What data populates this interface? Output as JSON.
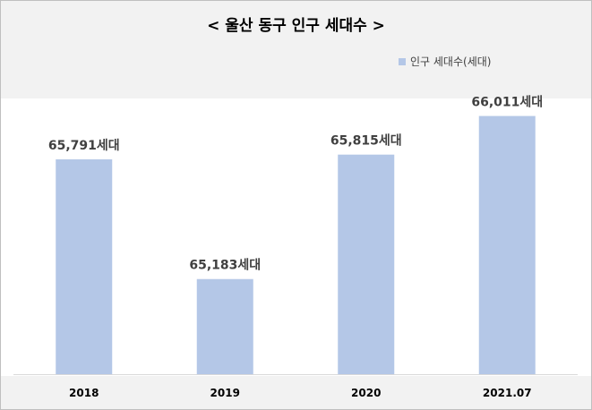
{
  "title": "< 울산 동구 인구 세대수 >",
  "legend": {
    "label": "인구 세대수(세대)",
    "color": "#b4c7e7"
  },
  "colors": {
    "bar": "#b4c7e7",
    "header_bg": "#f2f2f2",
    "axis": "#d9d9d9"
  },
  "chart_data": {
    "type": "bar",
    "title": "< 울산 동구 인구 세대수 >",
    "categories": [
      "2018",
      "2019",
      "2020",
      "2021.07"
    ],
    "series": [
      {
        "name": "인구 세대수(세대)",
        "values": [
          65791,
          65183,
          65815,
          66011
        ]
      }
    ],
    "data_labels": [
      "65,791세대",
      "65,183세대",
      "65,815세대",
      "66,011세대"
    ],
    "ylim": [
      64700,
      66100
    ],
    "xlabel": "",
    "ylabel": "",
    "grid": false,
    "legend_position": "top-right"
  }
}
